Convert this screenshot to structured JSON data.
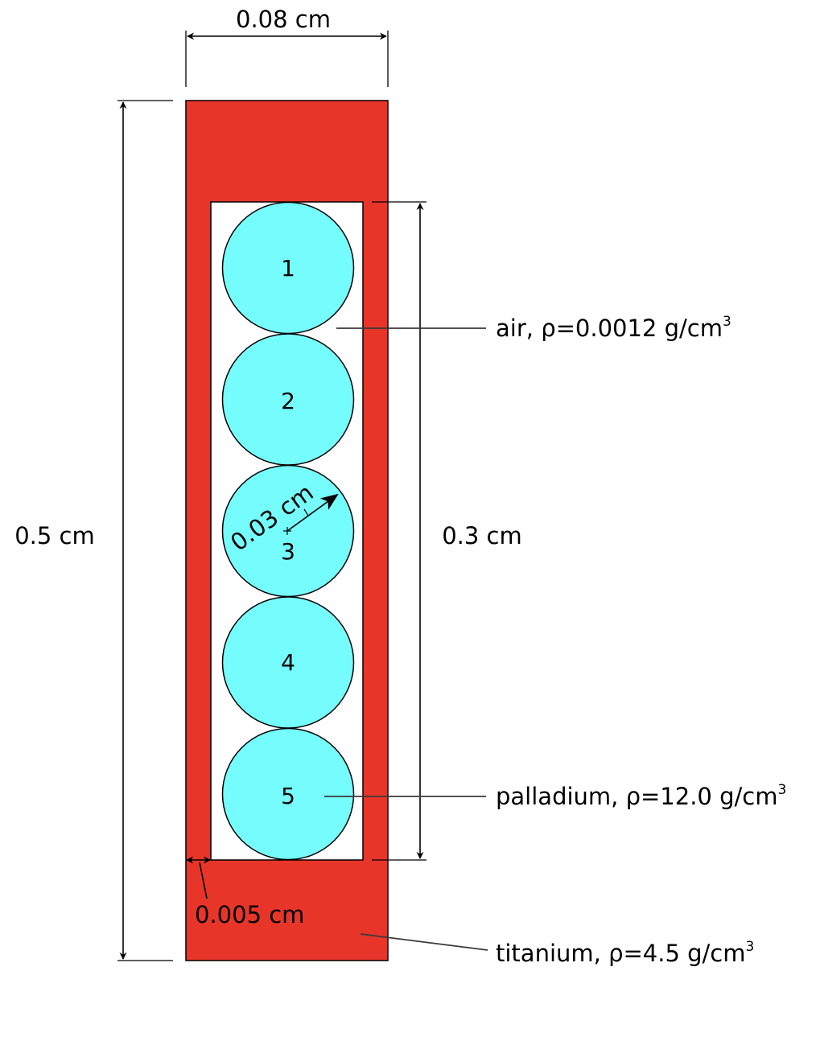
{
  "colors": {
    "titanium": "#e8352a",
    "palladium": "#75fcfd",
    "air": "#ffffff",
    "outline": "#000000"
  },
  "dimensions": {
    "width": "0.08 cm",
    "height": "0.5 cm",
    "cavity_height": "0.3 cm",
    "wall": "0.005 cm",
    "radius": "0.03 cm"
  },
  "materials": {
    "air": {
      "name": "air, ρ=0.0012 g/cm",
      "sup": "3"
    },
    "palladium": {
      "name": "palladium, ρ=12.0 g/cm",
      "sup": "3"
    },
    "titanium": {
      "name": "titanium, ρ=4.5 g/cm",
      "sup": "3"
    }
  },
  "spheres": [
    "1",
    "2",
    "3",
    "4",
    "5"
  ]
}
